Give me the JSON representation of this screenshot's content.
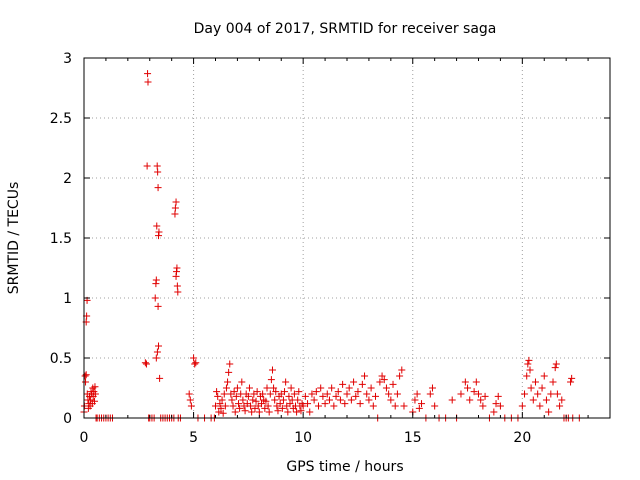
{
  "chart_data": {
    "type": "scatter",
    "title": "Day 004 of 2017, SRMTID for receiver saga",
    "xlabel": "GPS time / hours",
    "ylabel": "SRMTID / TECUs",
    "xlim": [
      0,
      24
    ],
    "ylim": [
      0,
      3
    ],
    "xticks": [
      0,
      5,
      10,
      15,
      20
    ],
    "yticks": [
      0,
      0.5,
      1,
      1.5,
      2,
      2.5,
      3
    ],
    "xtick_labels": [
      "0",
      "5",
      "10",
      "15",
      "20"
    ],
    "ytick_labels": [
      "0",
      "0.5",
      "1",
      "1.5",
      "2",
      "2.5",
      "3"
    ],
    "grid": true,
    "marker": "+",
    "series": [
      {
        "name": "SRMTID",
        "color": "#e00000",
        "points": [
          [
            0.0,
            0.05
          ],
          [
            0.02,
            0.1
          ],
          [
            0.05,
            0.35
          ],
          [
            0.07,
            0.3
          ],
          [
            0.1,
            0.8
          ],
          [
            0.12,
            0.85
          ],
          [
            0.14,
            0.98
          ],
          [
            0.1,
            0.36
          ],
          [
            0.15,
            0.2
          ],
          [
            0.18,
            0.15
          ],
          [
            0.2,
            0.08
          ],
          [
            0.22,
            0.12
          ],
          [
            0.25,
            0.18
          ],
          [
            0.28,
            0.1
          ],
          [
            0.3,
            0.15
          ],
          [
            0.32,
            0.22
          ],
          [
            0.35,
            0.2
          ],
          [
            0.38,
            0.12
          ],
          [
            0.4,
            0.25
          ],
          [
            0.42,
            0.18
          ],
          [
            0.45,
            0.22
          ],
          [
            0.48,
            0.14
          ],
          [
            0.5,
            0.26
          ],
          [
            0.52,
            0.2
          ],
          [
            0.55,
            0.0
          ],
          [
            0.6,
            0.0
          ],
          [
            0.7,
            0.0
          ],
          [
            0.8,
            0.0
          ],
          [
            0.9,
            0.0
          ],
          [
            1.0,
            0.0
          ],
          [
            1.1,
            0.0
          ],
          [
            1.2,
            0.0
          ],
          [
            1.3,
            0.0
          ],
          [
            2.8,
            0.46
          ],
          [
            2.85,
            0.45
          ],
          [
            2.88,
            2.1
          ],
          [
            2.9,
            2.87
          ],
          [
            2.92,
            2.8
          ],
          [
            2.95,
            0.0
          ],
          [
            3.0,
            0.0
          ],
          [
            3.1,
            0.0
          ],
          [
            3.2,
            0.0
          ],
          [
            3.25,
            1.0
          ],
          [
            3.28,
            1.12
          ],
          [
            3.3,
            1.15
          ],
          [
            3.32,
            1.6
          ],
          [
            3.34,
            2.1
          ],
          [
            3.36,
            2.05
          ],
          [
            3.38,
            1.92
          ],
          [
            3.4,
            1.52
          ],
          [
            3.42,
            1.55
          ],
          [
            3.3,
            0.5
          ],
          [
            3.35,
            0.55
          ],
          [
            3.4,
            0.6
          ],
          [
            3.38,
            0.93
          ],
          [
            3.45,
            0.33
          ],
          [
            3.5,
            0.0
          ],
          [
            3.6,
            0.0
          ],
          [
            3.7,
            0.0
          ],
          [
            3.8,
            0.0
          ],
          [
            3.9,
            0.0
          ],
          [
            4.0,
            0.0
          ],
          [
            4.1,
            0.0
          ],
          [
            4.15,
            1.7
          ],
          [
            4.17,
            1.75
          ],
          [
            4.2,
            1.8
          ],
          [
            4.22,
            1.22
          ],
          [
            4.24,
            1.25
          ],
          [
            4.26,
            1.1
          ],
          [
            4.28,
            1.05
          ],
          [
            4.2,
            1.18
          ],
          [
            4.3,
            0.0
          ],
          [
            4.4,
            0.0
          ],
          [
            4.8,
            0.2
          ],
          [
            4.85,
            0.15
          ],
          [
            4.9,
            0.1
          ],
          [
            5.0,
            0.5
          ],
          [
            5.05,
            0.45
          ],
          [
            5.1,
            0.46
          ],
          [
            5.2,
            0.0
          ],
          [
            5.5,
            0.0
          ],
          [
            5.8,
            0.0
          ],
          [
            5.95,
            0.0
          ],
          [
            6.0,
            0.1
          ],
          [
            6.05,
            0.22
          ],
          [
            6.1,
            0.18
          ],
          [
            6.15,
            0.05
          ],
          [
            6.2,
            0.12
          ],
          [
            6.25,
            0.08
          ],
          [
            6.3,
            0.15
          ],
          [
            6.35,
            0.04
          ],
          [
            6.4,
            0.2
          ],
          [
            6.45,
            0.1
          ],
          [
            6.5,
            0.25
          ],
          [
            6.55,
            0.3
          ],
          [
            6.6,
            0.38
          ],
          [
            6.65,
            0.45
          ],
          [
            6.7,
            0.2
          ],
          [
            6.75,
            0.15
          ],
          [
            6.8,
            0.1
          ],
          [
            6.85,
            0.22
          ],
          [
            6.9,
            0.05
          ],
          [
            6.95,
            0.18
          ],
          [
            7.0,
            0.25
          ],
          [
            7.05,
            0.12
          ],
          [
            7.1,
            0.08
          ],
          [
            7.15,
            0.2
          ],
          [
            7.2,
            0.3
          ],
          [
            7.25,
            0.15
          ],
          [
            7.3,
            0.1
          ],
          [
            7.35,
            0.06
          ],
          [
            7.4,
            0.2
          ],
          [
            7.45,
            0.12
          ],
          [
            7.5,
            0.18
          ],
          [
            7.55,
            0.25
          ],
          [
            7.6,
            0.1
          ],
          [
            7.65,
            0.05
          ],
          [
            7.7,
            0.15
          ],
          [
            7.75,
            0.2
          ],
          [
            7.8,
            0.08
          ],
          [
            7.85,
            0.14
          ],
          [
            7.9,
            0.22
          ],
          [
            7.95,
            0.1
          ],
          [
            8.0,
            0.05
          ],
          [
            8.05,
            0.18
          ],
          [
            8.1,
            0.12
          ],
          [
            8.15,
            0.2
          ],
          [
            8.2,
            0.15
          ],
          [
            8.25,
            0.08
          ],
          [
            8.3,
            0.14
          ],
          [
            8.35,
            0.25
          ],
          [
            8.4,
            0.1
          ],
          [
            8.45,
            0.05
          ],
          [
            8.5,
            0.2
          ],
          [
            8.55,
            0.32
          ],
          [
            8.6,
            0.4
          ],
          [
            8.65,
            0.25
          ],
          [
            8.7,
            0.15
          ],
          [
            8.75,
            0.22
          ],
          [
            8.8,
            0.1
          ],
          [
            8.85,
            0.06
          ],
          [
            8.9,
            0.18
          ],
          [
            8.95,
            0.12
          ],
          [
            9.0,
            0.2
          ],
          [
            9.05,
            0.08
          ],
          [
            9.1,
            0.15
          ],
          [
            9.15,
            0.22
          ],
          [
            9.2,
            0.3
          ],
          [
            9.25,
            0.1
          ],
          [
            9.3,
            0.05
          ],
          [
            9.35,
            0.18
          ],
          [
            9.4,
            0.12
          ],
          [
            9.45,
            0.25
          ],
          [
            9.5,
            0.15
          ],
          [
            9.55,
            0.08
          ],
          [
            9.6,
            0.2
          ],
          [
            9.65,
            0.1
          ],
          [
            9.7,
            0.05
          ],
          [
            9.75,
            0.15
          ],
          [
            9.8,
            0.22
          ],
          [
            9.85,
            0.1
          ],
          [
            9.9,
            0.06
          ],
          [
            9.95,
            0.12
          ],
          [
            10.0,
            0.1
          ],
          [
            10.1,
            0.18
          ],
          [
            10.2,
            0.12
          ],
          [
            10.3,
            0.05
          ],
          [
            10.4,
            0.2
          ],
          [
            10.5,
            0.15
          ],
          [
            10.6,
            0.22
          ],
          [
            10.7,
            0.1
          ],
          [
            10.8,
            0.25
          ],
          [
            10.9,
            0.18
          ],
          [
            11.0,
            0.12
          ],
          [
            11.1,
            0.2
          ],
          [
            11.2,
            0.15
          ],
          [
            11.3,
            0.25
          ],
          [
            11.4,
            0.1
          ],
          [
            11.5,
            0.18
          ],
          [
            11.6,
            0.22
          ],
          [
            11.7,
            0.15
          ],
          [
            11.8,
            0.28
          ],
          [
            11.9,
            0.12
          ],
          [
            12.0,
            0.2
          ],
          [
            12.1,
            0.25
          ],
          [
            12.2,
            0.15
          ],
          [
            12.3,
            0.3
          ],
          [
            12.4,
            0.18
          ],
          [
            12.5,
            0.22
          ],
          [
            12.6,
            0.12
          ],
          [
            12.7,
            0.28
          ],
          [
            12.8,
            0.35
          ],
          [
            12.9,
            0.2
          ],
          [
            13.0,
            0.15
          ],
          [
            13.1,
            0.25
          ],
          [
            13.2,
            0.1
          ],
          [
            13.3,
            0.18
          ],
          [
            13.4,
            0.0
          ],
          [
            13.5,
            0.3
          ],
          [
            13.6,
            0.35
          ],
          [
            13.7,
            0.32
          ],
          [
            13.8,
            0.25
          ],
          [
            13.9,
            0.2
          ],
          [
            14.0,
            0.15
          ],
          [
            14.1,
            0.28
          ],
          [
            14.2,
            0.1
          ],
          [
            14.3,
            0.2
          ],
          [
            14.4,
            0.35
          ],
          [
            14.5,
            0.4
          ],
          [
            14.6,
            0.1
          ],
          [
            15.0,
            0.05
          ],
          [
            15.1,
            0.15
          ],
          [
            15.2,
            0.2
          ],
          [
            15.3,
            0.08
          ],
          [
            15.4,
            0.12
          ],
          [
            15.6,
            0.0
          ],
          [
            15.8,
            0.2
          ],
          [
            15.9,
            0.25
          ],
          [
            16.0,
            0.1
          ],
          [
            16.2,
            0.0
          ],
          [
            16.5,
            0.0
          ],
          [
            16.8,
            0.15
          ],
          [
            17.0,
            0.0
          ],
          [
            17.2,
            0.2
          ],
          [
            17.4,
            0.3
          ],
          [
            17.5,
            0.25
          ],
          [
            17.6,
            0.15
          ],
          [
            17.8,
            0.22
          ],
          [
            17.9,
            0.3
          ],
          [
            18.0,
            0.2
          ],
          [
            18.1,
            0.15
          ],
          [
            18.2,
            0.1
          ],
          [
            18.3,
            0.18
          ],
          [
            18.5,
            0.0
          ],
          [
            18.7,
            0.05
          ],
          [
            18.8,
            0.12
          ],
          [
            18.9,
            0.18
          ],
          [
            19.0,
            0.1
          ],
          [
            19.2,
            0.0
          ],
          [
            19.5,
            0.0
          ],
          [
            19.8,
            0.0
          ],
          [
            20.0,
            0.1
          ],
          [
            20.1,
            0.2
          ],
          [
            20.2,
            0.35
          ],
          [
            20.25,
            0.45
          ],
          [
            20.3,
            0.48
          ],
          [
            20.35,
            0.4
          ],
          [
            20.4,
            0.25
          ],
          [
            20.5,
            0.15
          ],
          [
            20.6,
            0.3
          ],
          [
            20.7,
            0.2
          ],
          [
            20.8,
            0.1
          ],
          [
            20.9,
            0.25
          ],
          [
            21.0,
            0.35
          ],
          [
            21.1,
            0.15
          ],
          [
            21.2,
            0.05
          ],
          [
            21.3,
            0.2
          ],
          [
            21.4,
            0.3
          ],
          [
            21.5,
            0.42
          ],
          [
            21.55,
            0.45
          ],
          [
            21.6,
            0.2
          ],
          [
            21.7,
            0.1
          ],
          [
            21.8,
            0.15
          ],
          [
            21.9,
            0.0
          ],
          [
            22.0,
            0.0
          ],
          [
            22.1,
            0.0
          ],
          [
            22.2,
            0.3
          ],
          [
            22.25,
            0.33
          ],
          [
            22.3,
            0.0
          ],
          [
            22.6,
            0.0
          ]
        ]
      }
    ]
  }
}
